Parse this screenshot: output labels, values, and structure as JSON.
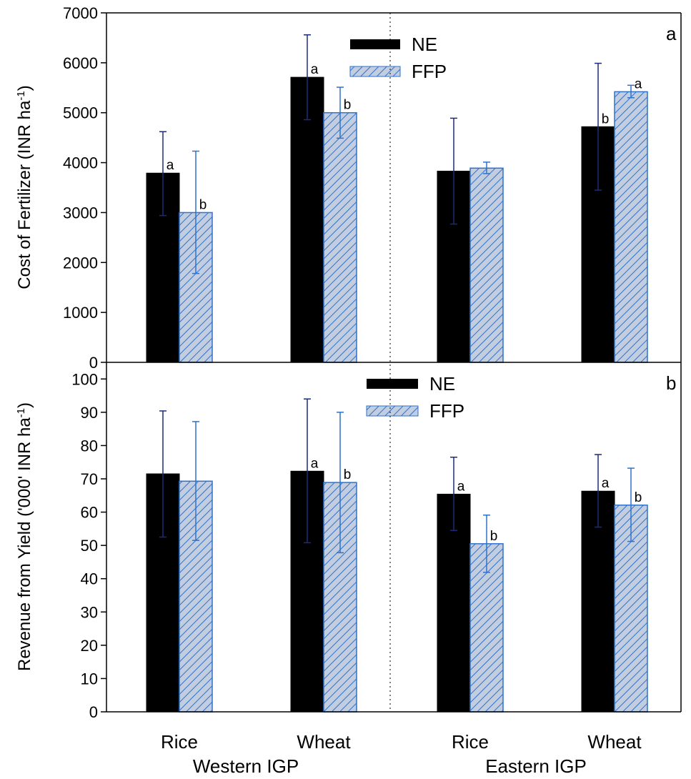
{
  "chart_data": [
    {
      "type": "bar",
      "panel_label": "a",
      "ylabel": "Cost of Fertilizer (INR ha",
      "ylabel_sup": "-1",
      "ylabel_tail": ")",
      "ylim": [
        0,
        7000
      ],
      "yticks": [
        0,
        1000,
        2000,
        3000,
        4000,
        5000,
        6000,
        7000
      ],
      "categories": [
        "Rice",
        "Wheat",
        "Rice",
        "Wheat"
      ],
      "groups": [
        "Western IGP",
        "Western IGP",
        "Eastern IGP",
        "Eastern IGP"
      ],
      "legend": {
        "placement": "top-center"
      },
      "series": [
        {
          "name": "NE",
          "values": [
            3790,
            5710,
            3830,
            4720
          ],
          "err_low": [
            2940,
            4860,
            2770,
            3450
          ],
          "err_high": [
            4620,
            6560,
            4890,
            5990
          ],
          "letters": [
            "a",
            "a",
            "",
            "b"
          ]
        },
        {
          "name": "FFP",
          "values": [
            3000,
            5000,
            3890,
            5420
          ],
          "err_low": [
            1780,
            4490,
            3780,
            5300
          ],
          "err_high": [
            4230,
            5510,
            4010,
            5550
          ],
          "letters": [
            "b",
            "b",
            "",
            "a"
          ]
        }
      ]
    },
    {
      "type": "bar",
      "panel_label": "b",
      "ylabel": "Revenue from Yield ('000' INR ha",
      "ylabel_sup": "-1",
      "ylabel_tail": ")",
      "ylim": [
        0,
        105
      ],
      "yticks": [
        0,
        10,
        20,
        30,
        40,
        50,
        60,
        70,
        80,
        90,
        100
      ],
      "categories": [
        "Rice",
        "Wheat",
        "Rice",
        "Wheat"
      ],
      "groups": [
        "Western IGP",
        "Western IGP",
        "Eastern IGP",
        "Eastern IGP"
      ],
      "legend": {
        "placement": "top-center"
      },
      "series": [
        {
          "name": "NE",
          "values": [
            71.5,
            72.3,
            65.4,
            66.3
          ],
          "err_low": [
            52.5,
            50.8,
            54.5,
            55.5
          ],
          "err_high": [
            90.4,
            94.0,
            76.5,
            77.3
          ],
          "letters": [
            "",
            "a",
            "a",
            "a"
          ]
        },
        {
          "name": "FFP",
          "values": [
            69.3,
            68.9,
            50.5,
            62.1
          ],
          "err_low": [
            51.5,
            47.8,
            41.9,
            51.2
          ],
          "err_high": [
            87.2,
            90.0,
            59.1,
            73.2
          ],
          "letters": [
            "",
            "b",
            "b",
            "b"
          ]
        }
      ]
    }
  ],
  "x_axis": {
    "categories": [
      "Rice",
      "Wheat",
      "Rice",
      "Wheat"
    ],
    "groups": [
      "Western IGP",
      "Eastern IGP"
    ]
  },
  "colors": {
    "ne_fill": "#000000",
    "ne_error": "#1f2a78",
    "ffp_fill": "#c2cde0",
    "ffp_hatch": "#2f72cc",
    "ffp_error": "#2f72cc"
  }
}
